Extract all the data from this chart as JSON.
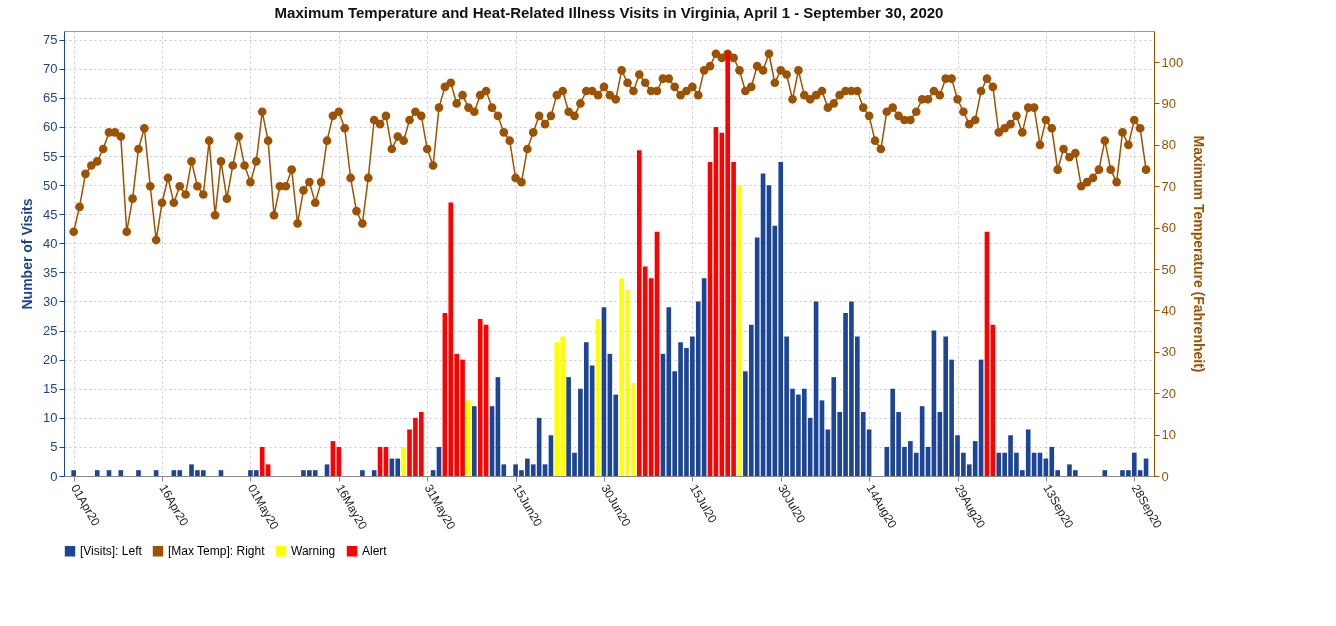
{
  "chart_data": {
    "type": "bar",
    "title": "Maximum Temperature and Heat-Related Illness Visits in Virginia, April 1 - September 30, 2020",
    "ylabel": "Number of Visits",
    "y2label": "Maximum Temperature (Fahrenheit)",
    "x": [
      "2020-04-01",
      "2020-04-02",
      "2020-04-03",
      "2020-04-04",
      "2020-04-05",
      "2020-04-06",
      "2020-04-07",
      "2020-04-08",
      "2020-04-09",
      "2020-04-10",
      "2020-04-11",
      "2020-04-12",
      "2020-04-13",
      "2020-04-14",
      "2020-04-15",
      "2020-04-16",
      "2020-04-17",
      "2020-04-18",
      "2020-04-19",
      "2020-04-20",
      "2020-04-21",
      "2020-04-22",
      "2020-04-23",
      "2020-04-24",
      "2020-04-25",
      "2020-04-26",
      "2020-04-27",
      "2020-04-28",
      "2020-04-29",
      "2020-04-30",
      "2020-05-01",
      "2020-05-02",
      "2020-05-03",
      "2020-05-04",
      "2020-05-05",
      "2020-05-06",
      "2020-05-07",
      "2020-05-08",
      "2020-05-09",
      "2020-05-10",
      "2020-05-11",
      "2020-05-12",
      "2020-05-13",
      "2020-05-14",
      "2020-05-15",
      "2020-05-16",
      "2020-05-17",
      "2020-05-18",
      "2020-05-19",
      "2020-05-20",
      "2020-05-21",
      "2020-05-22",
      "2020-05-23",
      "2020-05-24",
      "2020-05-25",
      "2020-05-26",
      "2020-05-27",
      "2020-05-28",
      "2020-05-29",
      "2020-05-30",
      "2020-05-31",
      "2020-06-01",
      "2020-06-02",
      "2020-06-03",
      "2020-06-04",
      "2020-06-05",
      "2020-06-06",
      "2020-06-07",
      "2020-06-08",
      "2020-06-09",
      "2020-06-10",
      "2020-06-11",
      "2020-06-12",
      "2020-06-13",
      "2020-06-14",
      "2020-06-15",
      "2020-06-16",
      "2020-06-17",
      "2020-06-18",
      "2020-06-19",
      "2020-06-20",
      "2020-06-21",
      "2020-06-22",
      "2020-06-23",
      "2020-06-24",
      "2020-06-25",
      "2020-06-26",
      "2020-06-27",
      "2020-06-28",
      "2020-06-29",
      "2020-06-30",
      "2020-07-01",
      "2020-07-02",
      "2020-07-03",
      "2020-07-04",
      "2020-07-05",
      "2020-07-06",
      "2020-07-07",
      "2020-07-08",
      "2020-07-09",
      "2020-07-10",
      "2020-07-11",
      "2020-07-12",
      "2020-07-13",
      "2020-07-14",
      "2020-07-15",
      "2020-07-16",
      "2020-07-17",
      "2020-07-18",
      "2020-07-19",
      "2020-07-20",
      "2020-07-21",
      "2020-07-22",
      "2020-07-23",
      "2020-07-24",
      "2020-07-25",
      "2020-07-26",
      "2020-07-27",
      "2020-07-28",
      "2020-07-29",
      "2020-07-30",
      "2020-07-31",
      "2020-08-01",
      "2020-08-02",
      "2020-08-03",
      "2020-08-04",
      "2020-08-05",
      "2020-08-06",
      "2020-08-07",
      "2020-08-08",
      "2020-08-09",
      "2020-08-10",
      "2020-08-11",
      "2020-08-12",
      "2020-08-13",
      "2020-08-14",
      "2020-08-15",
      "2020-08-16",
      "2020-08-17",
      "2020-08-18",
      "2020-08-19",
      "2020-08-20",
      "2020-08-21",
      "2020-08-22",
      "2020-08-23",
      "2020-08-24",
      "2020-08-25",
      "2020-08-26",
      "2020-08-27",
      "2020-08-28",
      "2020-08-29",
      "2020-08-30",
      "2020-08-31",
      "2020-09-01",
      "2020-09-02",
      "2020-09-03",
      "2020-09-04",
      "2020-09-05",
      "2020-09-06",
      "2020-09-07",
      "2020-09-08",
      "2020-09-09",
      "2020-09-10",
      "2020-09-11",
      "2020-09-12",
      "2020-09-13",
      "2020-09-14",
      "2020-09-15",
      "2020-09-16",
      "2020-09-17",
      "2020-09-18",
      "2020-09-19",
      "2020-09-20",
      "2020-09-21",
      "2020-09-22",
      "2020-09-23",
      "2020-09-24",
      "2020-09-25",
      "2020-09-26",
      "2020-09-27",
      "2020-09-28",
      "2020-09-29",
      "2020-09-30"
    ],
    "series": [
      {
        "name": "[Visits]: Left",
        "color": "#1c4596",
        "x": [
          "2020-04-01",
          "2020-04-05",
          "2020-04-07",
          "2020-04-09",
          "2020-04-12",
          "2020-04-15",
          "2020-04-18",
          "2020-04-19",
          "2020-04-21",
          "2020-04-22",
          "2020-04-23",
          "2020-04-26",
          "2020-05-01",
          "2020-05-02",
          "2020-05-10",
          "2020-05-11",
          "2020-05-12",
          "2020-05-14",
          "2020-05-20",
          "2020-05-22",
          "2020-05-25",
          "2020-05-26",
          "2020-06-01",
          "2020-06-02",
          "2020-06-08",
          "2020-06-11",
          "2020-06-12",
          "2020-06-13",
          "2020-06-15",
          "2020-06-16",
          "2020-06-17",
          "2020-06-18",
          "2020-06-19",
          "2020-06-20",
          "2020-06-21",
          "2020-06-24",
          "2020-06-25",
          "2020-06-26",
          "2020-06-27",
          "2020-06-28",
          "2020-06-30",
          "2020-07-01",
          "2020-07-02",
          "2020-07-10",
          "2020-07-11",
          "2020-07-12",
          "2020-07-13",
          "2020-07-14",
          "2020-07-15",
          "2020-07-16",
          "2020-07-17",
          "2020-07-24",
          "2020-07-25",
          "2020-07-26",
          "2020-07-27",
          "2020-07-28",
          "2020-07-29",
          "2020-07-30",
          "2020-07-31",
          "2020-08-01",
          "2020-08-02",
          "2020-08-03",
          "2020-08-04",
          "2020-08-05",
          "2020-08-06",
          "2020-08-07",
          "2020-08-08",
          "2020-08-09",
          "2020-08-10",
          "2020-08-11",
          "2020-08-12",
          "2020-08-13",
          "2020-08-14",
          "2020-08-17",
          "2020-08-18",
          "2020-08-19",
          "2020-08-20",
          "2020-08-21",
          "2020-08-22",
          "2020-08-23",
          "2020-08-24",
          "2020-08-25",
          "2020-08-26",
          "2020-08-27",
          "2020-08-28",
          "2020-08-29",
          "2020-08-30",
          "2020-08-31",
          "2020-09-01",
          "2020-09-02",
          "2020-09-05",
          "2020-09-06",
          "2020-09-07",
          "2020-09-08",
          "2020-09-09",
          "2020-09-10",
          "2020-09-11",
          "2020-09-12",
          "2020-09-13",
          "2020-09-14",
          "2020-09-15",
          "2020-09-17",
          "2020-09-18",
          "2020-09-23",
          "2020-09-26",
          "2020-09-27",
          "2020-09-28",
          "2020-09-29",
          "2020-09-30"
        ],
        "values": [
          1,
          1,
          1,
          1,
          1,
          1,
          1,
          1,
          2,
          1,
          1,
          1,
          1,
          1,
          1,
          1,
          1,
          2,
          1,
          1,
          3,
          3,
          1,
          5,
          12,
          12,
          17,
          2,
          2,
          1,
          3,
          2,
          10,
          2,
          7,
          17,
          4,
          15,
          23,
          19,
          29,
          21,
          14,
          21,
          29,
          18,
          23,
          22,
          24,
          30,
          34,
          18,
          26,
          41,
          52,
          50,
          43,
          54,
          24,
          15,
          14,
          15,
          10,
          30,
          13,
          8,
          17,
          11,
          28,
          30,
          24,
          11,
          8,
          5,
          15,
          11,
          5,
          6,
          4,
          12,
          5,
          25,
          11,
          24,
          20,
          7,
          4,
          2,
          6,
          20,
          4,
          4,
          7,
          4,
          1,
          8,
          4,
          4,
          3,
          5,
          1,
          2,
          1,
          1,
          1,
          1,
          4,
          1,
          3
        ]
      },
      {
        "name": "[Max Temp]: Right",
        "color": "#9c5200",
        "type": "line",
        "axis": "y2",
        "values": [
          59,
          65,
          73,
          75,
          76,
          79,
          83,
          83,
          82,
          59,
          67,
          79,
          84,
          70,
          57,
          66,
          72,
          66,
          70,
          68,
          76,
          70,
          68,
          81,
          63,
          76,
          67,
          75,
          82,
          75,
          71,
          76,
          88,
          81,
          63,
          70,
          70,
          74,
          61,
          69,
          71,
          66,
          71,
          81,
          87,
          88,
          84,
          72,
          64,
          61,
          72,
          86,
          85,
          87,
          79,
          82,
          81,
          86,
          88,
          87,
          79,
          75,
          89,
          94,
          95,
          90,
          92,
          89,
          88,
          92,
          93,
          89,
          87,
          83,
          81,
          72,
          71,
          79,
          83,
          87,
          85,
          87,
          92,
          93,
          88,
          87,
          90,
          93,
          93,
          92,
          94,
          92,
          91,
          98,
          95,
          93,
          97,
          95,
          93,
          93,
          96,
          96,
          94,
          92,
          93,
          94,
          92,
          98,
          99,
          102,
          101,
          102,
          101,
          98,
          93,
          94,
          99,
          98,
          102,
          95,
          98,
          97,
          91,
          98,
          92,
          91,
          92,
          93,
          89,
          90,
          92,
          93,
          93,
          93,
          89,
          87,
          81,
          79,
          88,
          89,
          87,
          86,
          86,
          88,
          91,
          91,
          93,
          92,
          96,
          96,
          91,
          88,
          85,
          86,
          93,
          96,
          94,
          83,
          84,
          85,
          87,
          83,
          89,
          89,
          80,
          86,
          84,
          74,
          79,
          77,
          78,
          70,
          71,
          72,
          74,
          81,
          74,
          71,
          83,
          80,
          86,
          84,
          74
        ]
      },
      {
        "name": "Warning",
        "color": "#ffff00",
        "x": [
          "2020-05-27",
          "2020-06-07",
          "2020-06-22",
          "2020-06-23",
          "2020-06-29",
          "2020-07-03",
          "2020-07-04",
          "2020-07-05",
          "2020-07-23"
        ],
        "values": [
          5,
          13,
          23,
          24,
          27,
          34,
          32,
          16,
          50
        ]
      },
      {
        "name": "Alert",
        "color": "#ff0000",
        "x": [
          "2020-05-03",
          "2020-05-04",
          "2020-05-15",
          "2020-05-16",
          "2020-05-23",
          "2020-05-24",
          "2020-05-28",
          "2020-05-29",
          "2020-05-30",
          "2020-06-03",
          "2020-06-04",
          "2020-06-05",
          "2020-06-06",
          "2020-06-09",
          "2020-06-10",
          "2020-07-06",
          "2020-07-07",
          "2020-07-08",
          "2020-07-09",
          "2020-07-18",
          "2020-07-19",
          "2020-07-20",
          "2020-07-21",
          "2020-07-22",
          "2020-09-03",
          "2020-09-04"
        ],
        "values": [
          5,
          2,
          6,
          5,
          5,
          5,
          8,
          10,
          11,
          28,
          47,
          21,
          20,
          27,
          26,
          56,
          36,
          34,
          42,
          54,
          60,
          59,
          73,
          54,
          42,
          26
        ]
      }
    ],
    "xlim": [
      "2020-03-31T05:00",
      "2020-09-30T12:00"
    ],
    "xticks": [
      {
        "value": "2020-04-01",
        "label": "01Apr20"
      },
      {
        "value": "2020-04-16",
        "label": "16Apr20"
      },
      {
        "value": "2020-05-01",
        "label": "01May20"
      },
      {
        "value": "2020-05-16",
        "label": "16May20"
      },
      {
        "value": "2020-05-31",
        "label": "31May20"
      },
      {
        "value": "2020-06-15",
        "label": "15Jun20"
      },
      {
        "value": "2020-06-30",
        "label": "30Jun20"
      },
      {
        "value": "2020-07-15",
        "label": "15Jul20"
      },
      {
        "value": "2020-07-30",
        "label": "30Jul20"
      },
      {
        "value": "2020-08-14",
        "label": "14Aug20"
      },
      {
        "value": "2020-08-29",
        "label": "29Aug20"
      },
      {
        "value": "2020-09-13",
        "label": "13Sep20"
      },
      {
        "value": "2020-09-28",
        "label": "28Sep20"
      }
    ],
    "ylim": [
      0,
      76.5
    ],
    "yticks": [
      0,
      5,
      10,
      15,
      20,
      25,
      30,
      35,
      40,
      45,
      50,
      55,
      60,
      65,
      70,
      75
    ],
    "y2lim": [
      0,
      107.5
    ],
    "y2ticks": [
      0,
      10,
      20,
      30,
      40,
      50,
      60,
      70,
      80,
      90,
      100
    ],
    "grid": true,
    "legend": "bottom",
    "marker": "circle"
  }
}
